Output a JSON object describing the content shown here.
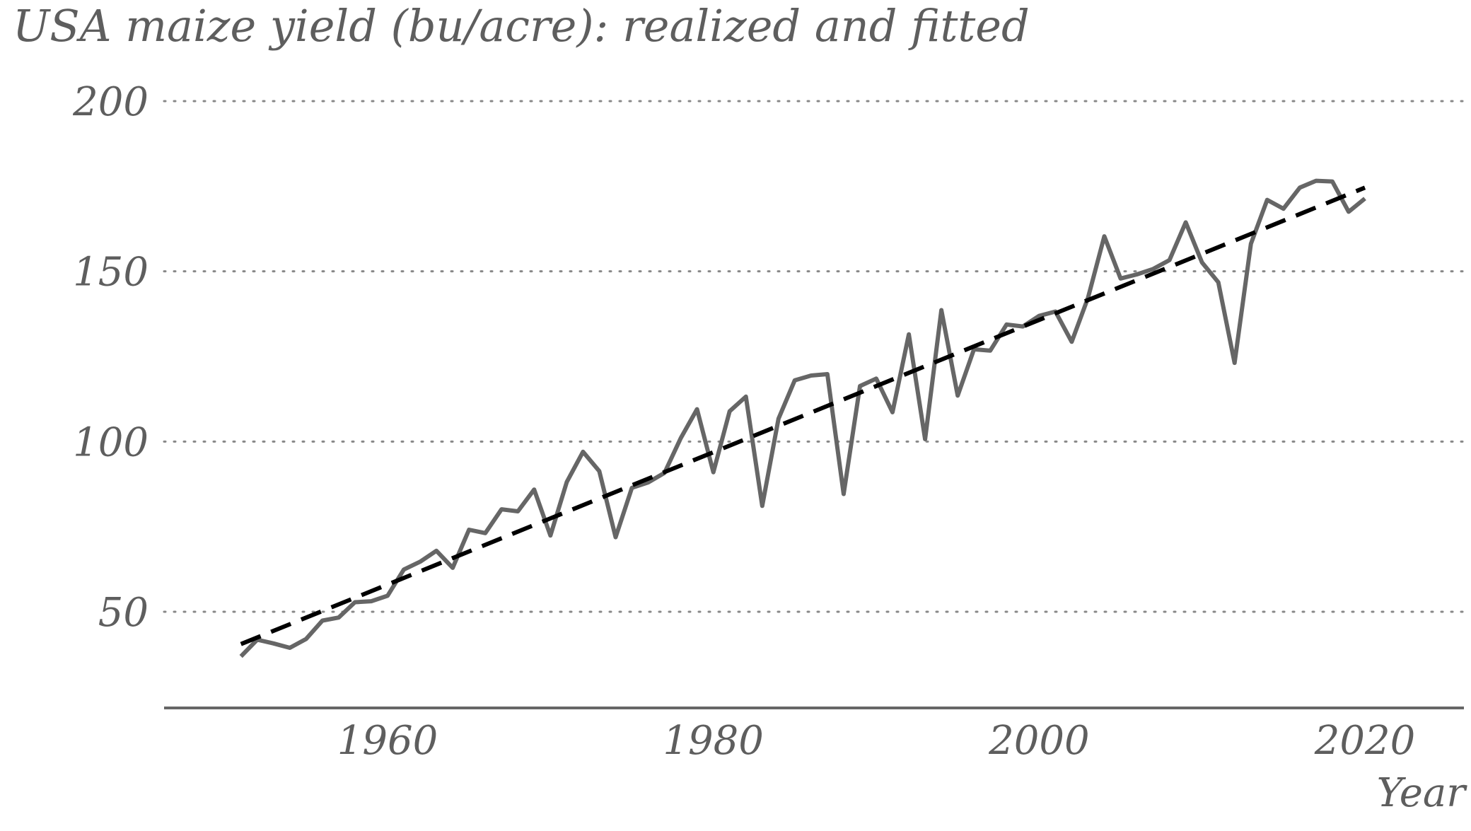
{
  "chart_data": {
    "type": "line",
    "title": "USA maize yield (bu/acre): realized and fitted",
    "xlabel": "Year",
    "ylabel": "",
    "xlim": [
      1947,
      2026
    ],
    "ylim": [
      22,
      205
    ],
    "xticks": [
      1960,
      1980,
      2000,
      2020
    ],
    "yticks": [
      50,
      100,
      150,
      200
    ],
    "grid": "horizontal dotted",
    "legend": "none",
    "series": [
      {
        "style": "solid",
        "color": "#666666",
        "x": [
          1951,
          1952,
          1953,
          1954,
          1955,
          1956,
          1957,
          1958,
          1959,
          1960,
          1961,
          1962,
          1963,
          1964,
          1965,
          1966,
          1967,
          1968,
          1969,
          1970,
          1971,
          1972,
          1973,
          1974,
          1975,
          1976,
          1977,
          1978,
          1979,
          1980,
          1981,
          1982,
          1983,
          1984,
          1985,
          1986,
          1987,
          1988,
          1989,
          1990,
          1991,
          1992,
          1993,
          1994,
          1995,
          1996,
          1997,
          1998,
          1999,
          2000,
          2001,
          2002,
          2003,
          2004,
          2005,
          2006,
          2007,
          2008,
          2009,
          2010,
          2011,
          2012,
          2013,
          2014,
          2015,
          2016,
          2017,
          2018,
          2019,
          2020
        ],
        "y": [
          36.9,
          41.8,
          40.7,
          39.4,
          42.0,
          47.4,
          48.3,
          52.8,
          53.1,
          54.7,
          62.4,
          64.7,
          67.9,
          62.9,
          74.1,
          73.1,
          80.1,
          79.5,
          85.9,
          72.4,
          88.1,
          97.0,
          91.3,
          71.9,
          86.4,
          88.0,
          90.8,
          101.0,
          109.5,
          91.0,
          108.9,
          113.2,
          81.1,
          106.7,
          118.0,
          119.4,
          119.8,
          84.6,
          116.3,
          118.5,
          108.6,
          131.5,
          100.7,
          138.6,
          113.5,
          127.1,
          126.7,
          134.4,
          133.8,
          136.9,
          138.2,
          129.3,
          142.2,
          160.3,
          147.9,
          149.1,
          150.7,
          153.3,
          164.4,
          152.6,
          146.8,
          123.1,
          158.1,
          171.0,
          168.4,
          174.6,
          176.6,
          176.4,
          167.5,
          171.4
        ]
      },
      {
        "style": "dashed",
        "color": "#000000",
        "x": [
          1951,
          2020
        ],
        "y": [
          40.5,
          174.6
        ]
      }
    ]
  }
}
